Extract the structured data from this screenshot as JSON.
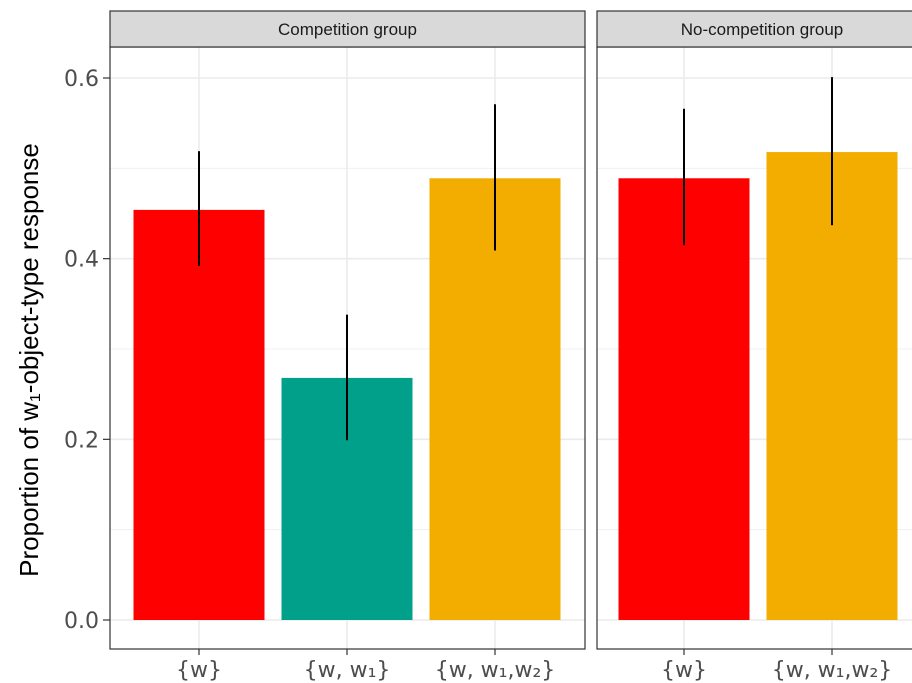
{
  "chart_data": {
    "type": "bar",
    "ylabel": "Proportion of w₁-object-type response",
    "ylim": [
      0,
      0.63
    ],
    "yticks": [
      "0.0",
      "0.2",
      "0.4",
      "0.6"
    ],
    "facets": [
      {
        "title": "Competition group",
        "categories": [
          "{w}",
          "{w, w₁}",
          "{w, w₁,w₂}"
        ],
        "values": [
          0.454,
          0.268,
          0.489
        ],
        "error_low": [
          0.392,
          0.199,
          0.409
        ],
        "error_high": [
          0.519,
          0.338,
          0.571
        ],
        "colors": [
          "#ff0000",
          "#00a08a",
          "#f2ad00"
        ]
      },
      {
        "title": "No-competition group",
        "categories": [
          "{w}",
          "{w, w₁,w₂}"
        ],
        "values": [
          0.489,
          0.518
        ],
        "error_low": [
          0.415,
          0.437
        ],
        "error_high": [
          0.566,
          0.601
        ],
        "colors": [
          "#ff0000",
          "#f2ad00"
        ]
      }
    ],
    "grid": true,
    "legend": "none"
  }
}
